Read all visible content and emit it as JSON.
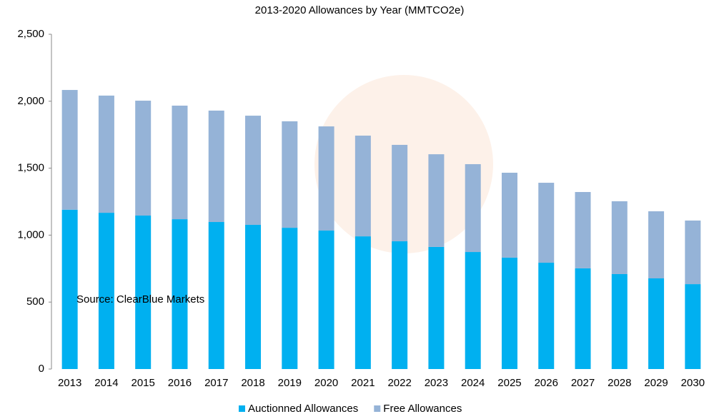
{
  "chart_data": {
    "type": "stacked_bar",
    "title": "2013-2020 Allowances by Year (MMTCO2e)",
    "annotation": "Source: ClearBlue Markets",
    "categories": [
      "2013",
      "2014",
      "2015",
      "2016",
      "2017",
      "2018",
      "2019",
      "2020",
      "2021",
      "2022",
      "2023",
      "2024",
      "2025",
      "2026",
      "2027",
      "2028",
      "2029",
      "2030"
    ],
    "series": [
      {
        "name": "Auctionned Allowances",
        "color": "#00b0f0",
        "values": [
          1190,
          1167,
          1146,
          1119,
          1098,
          1077,
          1055,
          1034,
          991,
          954,
          912,
          874,
          832,
          794,
          752,
          709,
          677,
          634
        ]
      },
      {
        "name": "Free Allowances",
        "color": "#95b3d7",
        "values": [
          894,
          875,
          858,
          848,
          832,
          815,
          795,
          778,
          752,
          720,
          692,
          656,
          634,
          597,
          570,
          544,
          501,
          475
        ]
      }
    ],
    "ylim": [
      0,
      2500
    ],
    "yticks": [
      0,
      500,
      {
        "value": 1000,
        "label": "1,000"
      },
      {
        "value": 1500,
        "label": "1,500"
      },
      {
        "value": 2000,
        "label": "2,000"
      },
      {
        "value": 2500,
        "label": "2,500"
      }
    ],
    "grid": false,
    "legend": "bottom"
  }
}
